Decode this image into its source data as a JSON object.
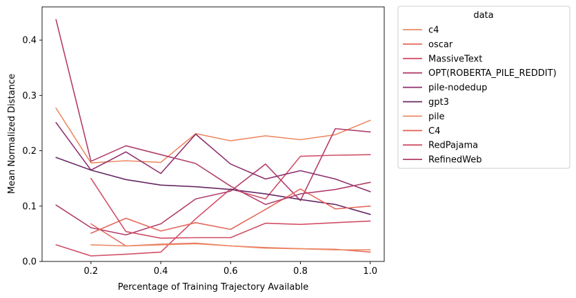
{
  "chart_data": {
    "type": "line",
    "xlabel": "Percentage of Training Trajectory Available",
    "ylabel": "Mean Normalized Distance",
    "xlim": [
      0.06,
      1.04
    ],
    "ylim": [
      0.0,
      0.46
    ],
    "xticks": [
      0.2,
      0.4,
      0.6,
      0.8,
      1.0
    ],
    "xtick_labels": [
      "0.2",
      "0.4",
      "0.6",
      "0.8",
      "1.0"
    ],
    "yticks": [
      0.0,
      0.1,
      0.2,
      0.3,
      0.4
    ],
    "ytick_labels": [
      "0.0",
      "0.1",
      "0.2",
      "0.3",
      "0.4"
    ],
    "grid": false,
    "legend": {
      "title": "data",
      "placement": "outside-right"
    },
    "series": [
      {
        "name": "c4",
        "color": "#ec8a63",
        "x": [
          0.1,
          0.2,
          0.3,
          0.4,
          0.5,
          0.6,
          0.7,
          0.8,
          0.9,
          1.0
        ],
        "y": [
          0.277,
          0.178,
          0.182,
          0.179,
          0.231,
          0.218,
          0.227,
          0.22,
          0.229,
          0.255
        ]
      },
      {
        "name": "oscar",
        "color": "#e4685b",
        "x": [
          0.2,
          0.3,
          0.4,
          0.5,
          0.6,
          0.7,
          0.8,
          0.9,
          1.0
        ],
        "y": [
          0.068,
          0.028,
          0.031,
          0.033,
          0.028,
          0.025,
          0.023,
          0.022,
          0.017
        ]
      },
      {
        "name": "MassiveText",
        "color": "#d14e66",
        "x": [
          0.1,
          0.2,
          0.3,
          0.4,
          0.5,
          0.6,
          0.7,
          0.8,
          0.9,
          1.0
        ],
        "y": [
          0.03,
          0.01,
          0.013,
          0.017,
          0.077,
          0.131,
          0.113,
          0.19,
          0.192,
          0.193
        ]
      },
      {
        "name": "OPT(ROBERTA_PILE_REDDIT)",
        "color": "#b13d6b",
        "x": [
          0.1,
          0.2,
          0.3,
          0.4,
          0.5,
          0.6,
          0.7,
          0.8,
          0.9,
          1.0
        ],
        "y": [
          0.102,
          0.061,
          0.048,
          0.068,
          0.113,
          0.127,
          0.176,
          0.11,
          0.24,
          0.234
        ]
      },
      {
        "name": "pile-nodedup",
        "color": "#8c2e6b",
        "x": [
          0.1,
          0.2,
          0.3,
          0.4,
          0.5,
          0.6,
          0.7,
          0.8,
          0.9,
          1.0
        ],
        "y": [
          0.251,
          0.165,
          0.198,
          0.159,
          0.23,
          0.176,
          0.149,
          0.164,
          0.149,
          0.126
        ]
      },
      {
        "name": "gpt3",
        "color": "#652764",
        "x": [
          0.1,
          0.2,
          0.3,
          0.4,
          0.5,
          0.6,
          0.7,
          0.8,
          0.9,
          1.0
        ],
        "y": [
          0.188,
          0.165,
          0.148,
          0.138,
          0.135,
          0.13,
          0.122,
          0.112,
          0.103,
          0.085
        ]
      },
      {
        "name": "pile",
        "color": "#ec8a63",
        "x": [
          0.2,
          0.3,
          0.4,
          0.5,
          0.6,
          0.7,
          0.8,
          0.9,
          1.0
        ],
        "y": [
          0.03,
          0.028,
          0.03,
          0.032,
          0.028,
          0.024,
          0.023,
          0.021,
          0.021
        ]
      },
      {
        "name": "C4",
        "color": "#e4685b",
        "x": [
          0.2,
          0.3,
          0.4,
          0.5,
          0.6,
          0.7,
          0.8,
          0.9,
          1.0
        ],
        "y": [
          0.051,
          0.078,
          0.055,
          0.07,
          0.058,
          0.094,
          0.131,
          0.095,
          0.1
        ]
      },
      {
        "name": "RedPajama",
        "color": "#d14e66",
        "x": [
          0.2,
          0.3,
          0.4,
          0.5,
          0.6,
          0.7,
          0.8,
          0.9,
          1.0
        ],
        "y": [
          0.15,
          0.054,
          0.042,
          0.043,
          0.043,
          0.069,
          0.067,
          0.07,
          0.073
        ]
      },
      {
        "name": "RefinedWeb",
        "color": "#b13d6b",
        "x": [
          0.1,
          0.2,
          0.3,
          0.4,
          0.5,
          0.6,
          0.7,
          0.8,
          0.9,
          1.0
        ],
        "y": [
          0.437,
          0.181,
          0.209,
          0.193,
          0.177,
          0.136,
          0.103,
          0.122,
          0.13,
          0.143
        ]
      }
    ]
  }
}
